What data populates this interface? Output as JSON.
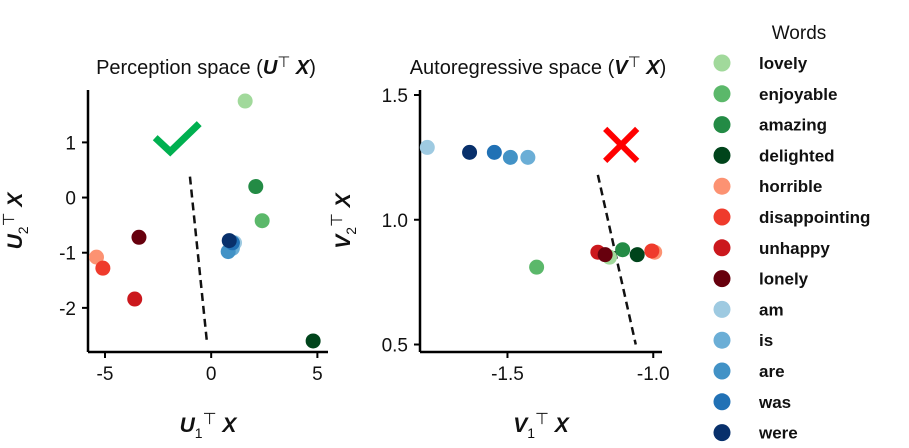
{
  "colors": {
    "lovely": "#a1d99b",
    "enjoyable": "#5bb86a",
    "amazing": "#238b45",
    "delighted": "#00441b",
    "horrible": "#fc9272",
    "disappointing": "#ef3b2c",
    "unhappy": "#cb181d",
    "lonely": "#67000d",
    "am": "#9ecae1",
    "is": "#6baed6",
    "are": "#4292c6",
    "was": "#2171b5",
    "were": "#08306b",
    "check": "#00b050",
    "cross": "#ff0000"
  },
  "legend": {
    "title": "Words",
    "entries": [
      "lovely",
      "enjoyable",
      "amazing",
      "delighted",
      "horrible",
      "disappointing",
      "unhappy",
      "lonely",
      "am",
      "is",
      "are",
      "was",
      "were"
    ]
  },
  "chart_data": [
    {
      "type": "scatter",
      "title": "Perception space (U⊤X)",
      "title_parts": [
        "Perception space (",
        "U",
        "⊤",
        " X",
        ")"
      ],
      "xlabel_parts": [
        "U",
        "1",
        "⊤",
        " X"
      ],
      "ylabel_parts": [
        "U",
        "2",
        "⊤",
        " X"
      ],
      "xlim": [
        -5.8,
        5.5
      ],
      "ylim": [
        -2.8,
        1.95
      ],
      "xticks": [
        -5,
        0,
        5
      ],
      "yticks": [
        -2,
        -1,
        0,
        1
      ],
      "xtick_labels": [
        "-5",
        "0",
        "5"
      ],
      "ytick_labels": [
        "-2",
        "-1",
        "0",
        "1"
      ],
      "marker": "check",
      "marker_pos": [
        -1.6,
        1.05
      ],
      "boundary": [
        [
          -1.0,
          0.38
        ],
        [
          -0.2,
          -2.62
        ]
      ],
      "points": [
        {
          "word": "lovely",
          "x": 1.6,
          "y": 1.75
        },
        {
          "word": "amazing",
          "x": 2.1,
          "y": 0.2
        },
        {
          "word": "enjoyable",
          "x": 2.4,
          "y": -0.42
        },
        {
          "word": "delighted",
          "x": 4.8,
          "y": -2.6
        },
        {
          "word": "lonely",
          "x": -3.4,
          "y": -0.72
        },
        {
          "word": "horrible",
          "x": -5.4,
          "y": -1.08
        },
        {
          "word": "disappointing",
          "x": -5.1,
          "y": -1.28
        },
        {
          "word": "unhappy",
          "x": -3.6,
          "y": -1.84
        },
        {
          "word": "am",
          "x": 1.1,
          "y": -0.82
        },
        {
          "word": "is",
          "x": 1.0,
          "y": -0.92
        },
        {
          "word": "are",
          "x": 0.8,
          "y": -0.98
        },
        {
          "word": "was",
          "x": 1.0,
          "y": -0.82
        },
        {
          "word": "were",
          "x": 0.85,
          "y": -0.78
        }
      ]
    },
    {
      "type": "scatter",
      "title": "Autoregressive space (V⊤X)",
      "title_parts": [
        "Autoregressive space (",
        "V",
        "⊤",
        " X",
        ")"
      ],
      "xlabel_parts": [
        "V",
        "1",
        "⊤",
        " X"
      ],
      "ylabel_parts": [
        "V",
        "2",
        "⊤",
        " X"
      ],
      "xlim": [
        -1.8,
        -0.97
      ],
      "ylim": [
        0.47,
        1.52
      ],
      "xticks": [
        -1.5,
        -1.0
      ],
      "yticks": [
        0.5,
        1.0,
        1.5
      ],
      "xtick_labels": [
        "-1.5",
        "-1.0"
      ],
      "ytick_labels": [
        "0.5",
        "1.0",
        "1.5"
      ],
      "marker": "cross",
      "marker_pos": [
        -1.11,
        1.3
      ],
      "boundary": [
        [
          -1.19,
          1.18
        ],
        [
          -1.06,
          0.5
        ]
      ],
      "points": [
        {
          "word": "am",
          "x": -1.775,
          "y": 1.29
        },
        {
          "word": "were",
          "x": -1.63,
          "y": 1.27
        },
        {
          "word": "was",
          "x": -1.545,
          "y": 1.27
        },
        {
          "word": "is",
          "x": -1.43,
          "y": 1.25
        },
        {
          "word": "are",
          "x": -1.49,
          "y": 1.25
        },
        {
          "word": "enjoyable",
          "x": -1.4,
          "y": 0.81
        },
        {
          "word": "lovely",
          "x": -1.15,
          "y": 0.85
        },
        {
          "word": "unhappy",
          "x": -1.19,
          "y": 0.87
        },
        {
          "word": "lonely",
          "x": -1.165,
          "y": 0.86
        },
        {
          "word": "amazing",
          "x": -1.105,
          "y": 0.88
        },
        {
          "word": "delighted",
          "x": -1.055,
          "y": 0.86
        },
        {
          "word": "horrible",
          "x": -0.995,
          "y": 0.87
        },
        {
          "word": "disappointing",
          "x": -1.005,
          "y": 0.875
        }
      ]
    }
  ]
}
